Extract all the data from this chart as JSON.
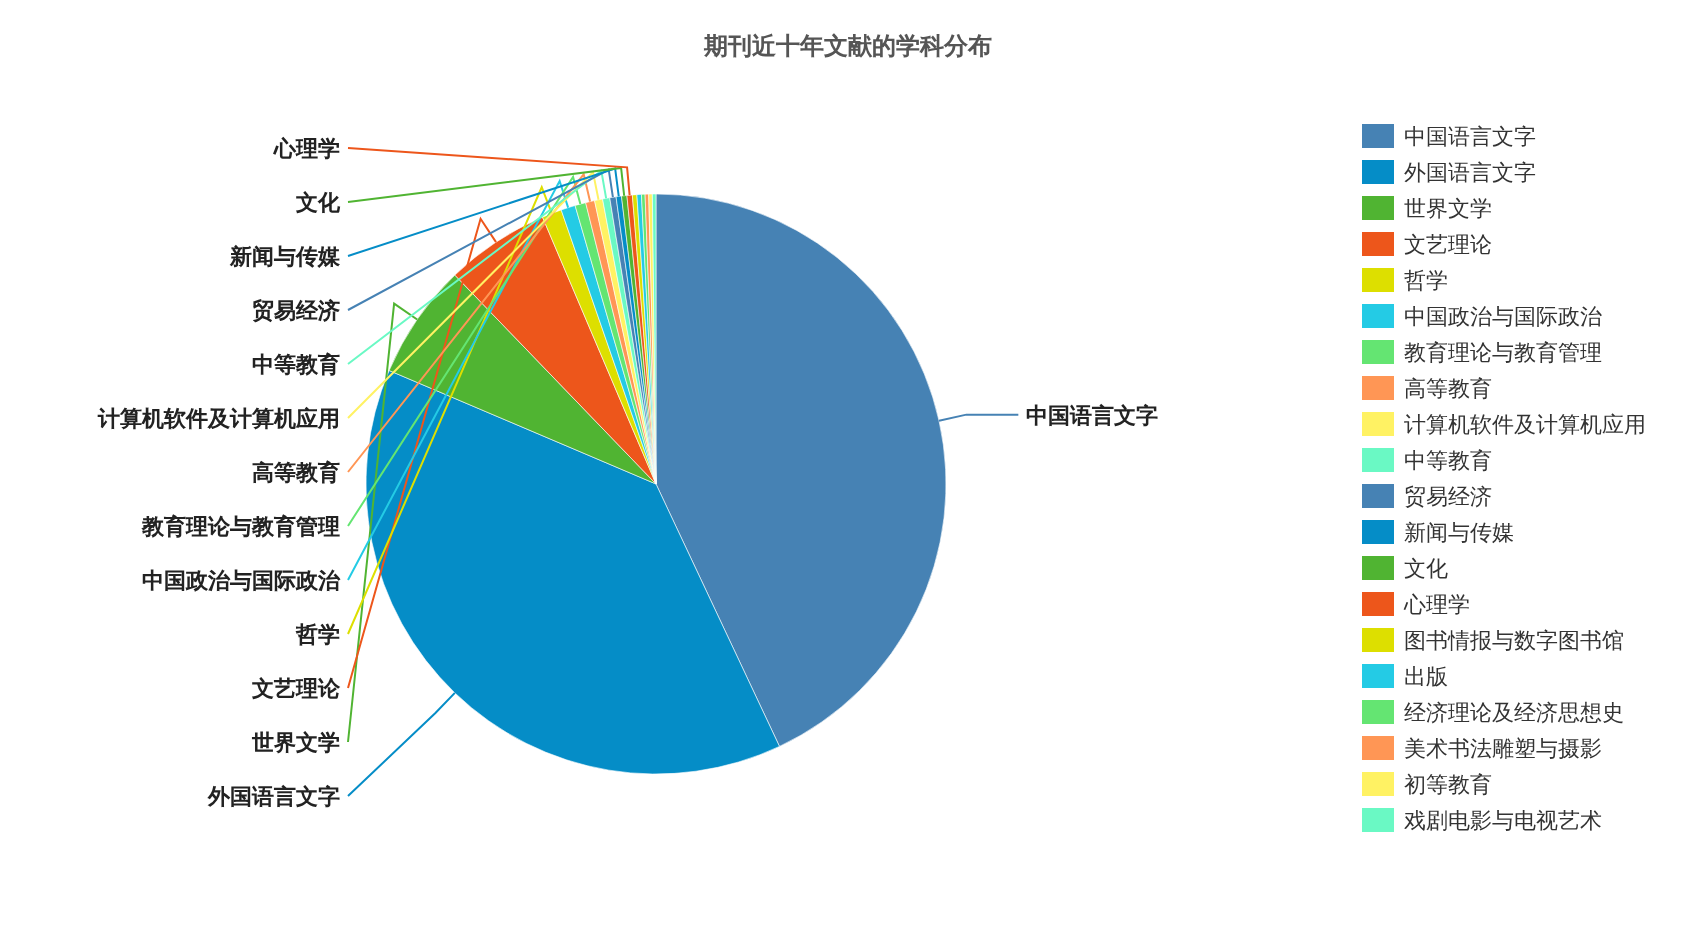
{
  "chart_data": {
    "type": "pie",
    "title": "期刊近十年文献的学科分布",
    "categories": [
      "中国语言文字",
      "外国语言文字",
      "世界文学",
      "文艺理论",
      "哲学",
      "中国政治与国际政治",
      "教育理论与教育管理",
      "高等教育",
      "计算机软件及计算机应用",
      "中等教育",
      "贸易经济",
      "新闻与传媒",
      "文化",
      "心理学",
      "图书情报与数字图书馆",
      "出版",
      "经济理论及经济思想史",
      "美术书法雕塑与摄影",
      "初等教育",
      "戏剧电影与电视艺术"
    ],
    "values": [
      43,
      38.4,
      6.4,
      5.8,
      1.1,
      0.8,
      0.6,
      0.5,
      0.45,
      0.4,
      0.35,
      0.3,
      0.3,
      0.3,
      0.25,
      0.25,
      0.2,
      0.2,
      0.2,
      0.2
    ],
    "colors": [
      "#4682b4",
      "#058dc7",
      "#50b432",
      "#ed561b",
      "#dddf00",
      "#24cbe5",
      "#64e572",
      "#ff9655",
      "#fff263",
      "#6af9c4",
      "#4682b4",
      "#058dc7",
      "#50b432",
      "#ed561b",
      "#dddf00",
      "#24cbe5",
      "#64e572",
      "#ff9655",
      "#fff263",
      "#6af9c4"
    ],
    "legend": "right"
  }
}
